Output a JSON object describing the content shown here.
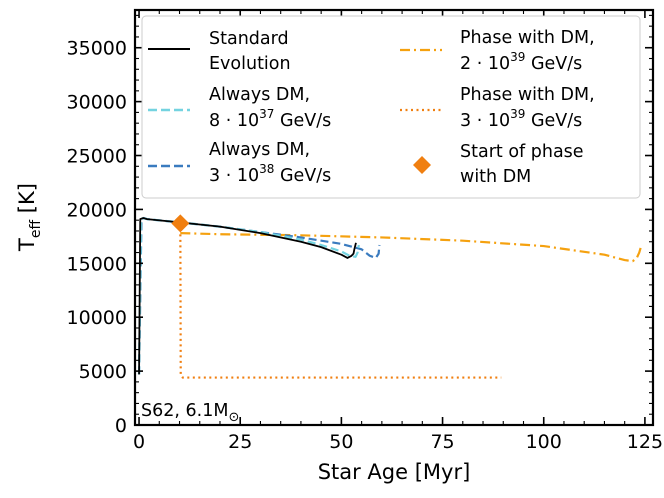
{
  "chart_data": {
    "type": "line",
    "xlabel": "Star Age [Myr]",
    "ylabel_main": "T",
    "ylabel_sub": "eff",
    "ylabel_unit": " [K]",
    "xlim": [
      -1,
      127
    ],
    "ylim": [
      0,
      38500
    ],
    "xticks": [
      0,
      25,
      50,
      75,
      100,
      125
    ],
    "xtick_labels": [
      "0",
      "25",
      "50",
      "75",
      "100",
      "125"
    ],
    "yticks": [
      0,
      5000,
      10000,
      15000,
      20000,
      25000,
      30000,
      35000
    ],
    "ytick_labels": [
      "0",
      "5000",
      "10000",
      "15000",
      "20000",
      "25000",
      "30000",
      "35000"
    ],
    "annotation_main": "S62, 6.1M",
    "annotation_sub": "⊙",
    "series": [
      {
        "id": "standard",
        "name_lines": [
          "Standard",
          "Evolution"
        ],
        "color": "#000000",
        "style": "solid",
        "x": [
          0,
          0.3,
          1,
          2,
          10,
          20,
          30,
          40,
          45,
          50,
          51.5,
          52.5,
          53,
          53.2,
          53.4,
          53.6
        ],
        "y": [
          4700,
          19100,
          19200,
          19100,
          18800,
          18400,
          17800,
          17000,
          16500,
          15800,
          15500,
          15700,
          15900,
          16300,
          16600,
          16900
        ]
      },
      {
        "id": "dm_8e37",
        "name_lines": [
          "Always DM,",
          "8 · 10",
          "37",
          " GeV/s"
        ],
        "color": "#74d3e0",
        "style": "dashed",
        "x": [
          0,
          0.5,
          1,
          2,
          10,
          20,
          30,
          40,
          45,
          50,
          52,
          53.5,
          54,
          54.3
        ],
        "y": [
          4700,
          19100,
          19200,
          19100,
          18800,
          18400,
          17900,
          17200,
          16700,
          16100,
          15700,
          15600,
          16000,
          16700
        ]
      },
      {
        "id": "dm_3e38",
        "name_lines": [
          "Always DM,",
          "3 · 10",
          "38",
          " GeV/s"
        ],
        "color": "#3a7bbf",
        "style": "dashed",
        "x": [
          0,
          0.6,
          1.2,
          2,
          10,
          20,
          30,
          40,
          50,
          55,
          57,
          58.5,
          59.2,
          59.4
        ],
        "y": [
          4700,
          19100,
          19200,
          19100,
          18800,
          18400,
          17900,
          17400,
          16800,
          16300,
          15700,
          15500,
          15900,
          16700
        ]
      },
      {
        "id": "phase_2e39",
        "name_lines": [
          "Phase with DM,",
          "2 · 10",
          "39",
          " GeV/s"
        ],
        "color": "#f5a10f",
        "style": "dashdot",
        "x": [
          10.2,
          20,
          40,
          60,
          80,
          100,
          115,
          120,
          122,
          123,
          123.6,
          124
        ],
        "y": [
          17800,
          17700,
          17600,
          17400,
          17100,
          16600,
          15800,
          15300,
          15200,
          15500,
          16000,
          16500
        ]
      },
      {
        "id": "phase_3e39",
        "name_lines": [
          "Phase with DM,",
          "3 · 10",
          "39",
          " GeV/s"
        ],
        "color": "#f07f10",
        "style": "dotted",
        "x": [
          10.2,
          10.3,
          10.8,
          30,
          60,
          89.5
        ],
        "y": [
          18700,
          4600,
          4400,
          4400,
          4400,
          4400
        ]
      },
      {
        "id": "start_marker",
        "name_lines": [
          "Start of phase",
          "with DM"
        ],
        "color": "#f07f10",
        "style": "marker",
        "x": [
          10.2
        ],
        "y": [
          18700
        ]
      }
    ]
  }
}
